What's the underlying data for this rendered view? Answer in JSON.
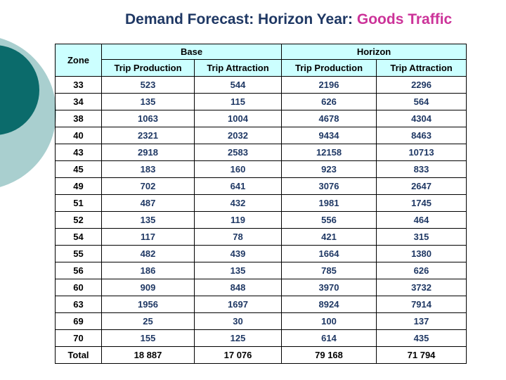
{
  "title": {
    "main": "Demand Forecast: Horizon Year: ",
    "highlight": "Goods Traffic"
  },
  "colors": {
    "title": "#1f3864",
    "highlight": "#cc3399",
    "header_bg": "#ccffff",
    "deco_dark": "#0b6b6b",
    "deco_light": "#a9cfcf"
  },
  "table": {
    "zone_header": "Zone",
    "groups": [
      "Base",
      "Horizon"
    ],
    "subheaders": [
      "Trip Production",
      "Trip Attraction",
      "Trip Production",
      "Trip Attraction"
    ],
    "rows": [
      [
        "33",
        "523",
        "544",
        "2196",
        "2296"
      ],
      [
        "34",
        "135",
        "115",
        "626",
        "564"
      ],
      [
        "38",
        "1063",
        "1004",
        "4678",
        "4304"
      ],
      [
        "40",
        "2321",
        "2032",
        "9434",
        "8463"
      ],
      [
        "43",
        "2918",
        "2583",
        "12158",
        "10713"
      ],
      [
        "45",
        "183",
        "160",
        "923",
        "833"
      ],
      [
        "49",
        "702",
        "641",
        "3076",
        "2647"
      ],
      [
        "51",
        "487",
        "432",
        "1981",
        "1745"
      ],
      [
        "52",
        "135",
        "119",
        "556",
        "464"
      ],
      [
        "54",
        "117",
        "78",
        "421",
        "315"
      ],
      [
        "55",
        "482",
        "439",
        "1664",
        "1380"
      ],
      [
        "56",
        "186",
        "135",
        "785",
        "626"
      ],
      [
        "60",
        "909",
        "848",
        "3970",
        "3732"
      ],
      [
        "63",
        "1956",
        "1697",
        "8924",
        "7914"
      ],
      [
        "69",
        "25",
        "30",
        "100",
        "137"
      ],
      [
        "70",
        "155",
        "125",
        "614",
        "435"
      ]
    ],
    "total": [
      "Total",
      "18 887",
      "17 076",
      "79 168",
      "71 794"
    ]
  }
}
